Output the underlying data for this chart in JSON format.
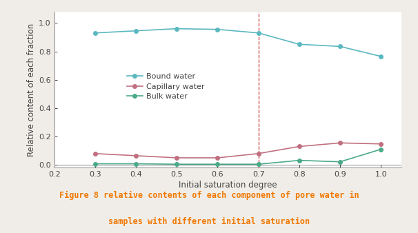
{
  "x": [
    0.3,
    0.4,
    0.5,
    0.6,
    0.7,
    0.8,
    0.9,
    1.0
  ],
  "bound_water": [
    0.93,
    0.945,
    0.96,
    0.955,
    0.93,
    0.85,
    0.835,
    0.765
  ],
  "capillary_water": [
    0.08,
    0.065,
    0.05,
    0.05,
    0.08,
    0.13,
    0.155,
    0.148
  ],
  "bulk_water": [
    0.008,
    0.008,
    0.005,
    0.005,
    0.005,
    0.032,
    0.022,
    0.11
  ],
  "bound_color": "#5ab8c0",
  "capillary_color": "#c07080",
  "bulk_color": "#4aaa88",
  "vline_x": 0.7,
  "vline_color": "#cc3333",
  "xlim": [
    0.2,
    1.05
  ],
  "ylim": [
    -0.02,
    1.08
  ],
  "xticks": [
    0.2,
    0.3,
    0.4,
    0.5,
    0.6,
    0.7,
    0.8,
    0.9,
    1.0
  ],
  "yticks": [
    0.0,
    0.2,
    0.4,
    0.6,
    0.8,
    1.0
  ],
  "xlabel": "Initial saturation degree",
  "ylabel": "Relative content of each fraction",
  "legend_labels": [
    "Bound water",
    "Capillary water",
    "Bulk water"
  ],
  "caption_line1": "Figure 8 relative contents of each component of pore water in",
  "caption_line2": "samples with different initial saturation",
  "caption_color": "#f07800",
  "fig_bg_color": "#f0ede8",
  "plot_bg_color": "#ffffff",
  "marker": "o",
  "marker_size": 4,
  "linewidth": 1.2
}
